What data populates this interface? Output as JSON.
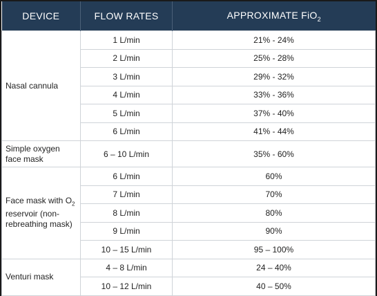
{
  "header": {
    "device": "DEVICE",
    "flow_rates": "FLOW RATES",
    "fio2_main": "APPROXIMATE FiO",
    "fio2_sub": "2"
  },
  "groups": [
    {
      "device": "Nasal cannula",
      "rows": [
        {
          "flow": "1 L/min",
          "fio2": "21% - 24%"
        },
        {
          "flow": "2 L/min",
          "fio2": "25% - 28%"
        },
        {
          "flow": "3 L/min",
          "fio2": "29% - 32%"
        },
        {
          "flow": "4 L/min",
          "fio2": "33% - 36%"
        },
        {
          "flow": "5 L/min",
          "fio2": "37% - 40%"
        },
        {
          "flow": "6 L/min",
          "fio2": "41% - 44%"
        }
      ]
    },
    {
      "device_line1": "Simple oxygen",
      "device_line2": "face mask",
      "rows": [
        {
          "flow": "6 – 10 L/min",
          "fio2": "35% - 60%"
        }
      ]
    },
    {
      "device_line1": "Face mask with O",
      "device_sub": "2",
      "device_line2": "reservoir (non-",
      "device_line3": "rebreathing mask)",
      "rows": [
        {
          "flow": "6 L/min",
          "fio2": "60%"
        },
        {
          "flow": "7 L/min",
          "fio2": "70%"
        },
        {
          "flow": "8 L/min",
          "fio2": "80%"
        },
        {
          "flow": "9 L/min",
          "fio2": "90%"
        },
        {
          "flow": "10 – 15 L/min",
          "fio2": "95 – 100%"
        }
      ]
    },
    {
      "device": "Venturi mask",
      "rows": [
        {
          "flow": "4 – 8 L/min",
          "fio2": "24 – 40%"
        },
        {
          "flow": "10 – 12 L/min",
          "fio2": "40 – 50%"
        }
      ]
    }
  ]
}
